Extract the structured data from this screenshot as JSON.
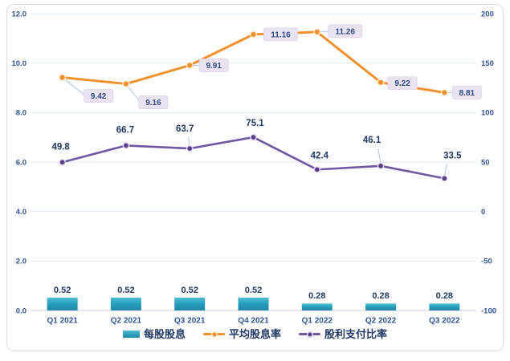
{
  "chart_data": {
    "type": "combo",
    "title": "",
    "categories": [
      "Q1 2021",
      "Q2 2021",
      "Q3 2021",
      "Q4 2021",
      "Q1 2022",
      "Q2 2022",
      "Q3 2022"
    ],
    "series": [
      {
        "name": "每股股息",
        "type": "bar",
        "axis": "left",
        "values": [
          0.52,
          0.52,
          0.52,
          0.52,
          0.28,
          0.28,
          0.28
        ],
        "labels": [
          "0.52",
          "0.52",
          "0.52",
          "0.52",
          "0.28",
          "0.28",
          "0.28"
        ],
        "color": "#2AA0BE",
        "color_top": "#4DBDD4",
        "color_bottom": "#1E86A6"
      },
      {
        "name": "平均股息率",
        "type": "line",
        "axis": "left",
        "values": [
          9.42,
          9.16,
          9.91,
          11.16,
          11.26,
          9.22,
          8.81
        ],
        "labels": [
          "9.42",
          "9.16",
          "9.91",
          "11.16",
          "11.26",
          "9.22",
          "8.81"
        ],
        "color": "#F0912D",
        "label_style": "boxed-callout"
      },
      {
        "name": "股利支付比率",
        "type": "line",
        "axis": "right",
        "values": [
          49.8,
          66.7,
          63.7,
          75.1,
          42.4,
          46.1,
          33.5
        ],
        "labels": [
          "49.8",
          "66.7",
          "63.7",
          "75.1",
          "42.4",
          "46.1",
          "33.5"
        ],
        "color": "#7157A3",
        "marker_color": "#5B3D8F",
        "label_style": "bold-text"
      }
    ],
    "left_axis": {
      "min": 0,
      "max": 12,
      "tick_labels": [
        "12.0",
        "10.0",
        "8.0",
        "6.0",
        "4.0",
        "2.0",
        "0.0"
      ]
    },
    "right_axis": {
      "min": -100,
      "max": 200,
      "tick_labels": [
        "200",
        "150",
        "100",
        "50",
        "0",
        "-50",
        "-100"
      ]
    },
    "grid": true,
    "legend_position": "bottom"
  },
  "colors": {
    "gridline": "#DFE8F4",
    "axis_line": "#C3D2E6",
    "tick_label": "#2E5596",
    "data_label": "#1F3864",
    "callout_box_bg": "#EAE4F2",
    "callout_box_border": "#DCD3EA",
    "callout_text": "#2F4A8F",
    "leader_line": "#A9C7E7",
    "frame_border": "#D9DFEA"
  }
}
